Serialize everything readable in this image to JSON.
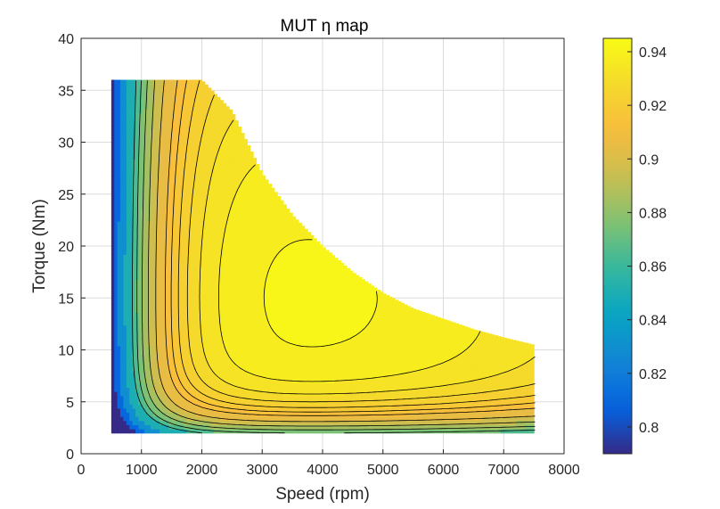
{
  "chart_data": {
    "type": "heatmap",
    "subtype": "filled-contour",
    "title": "MUT η map",
    "xlabel": "Speed (rpm)",
    "ylabel": "Torque  (Nm)",
    "xlim": [
      0,
      8000
    ],
    "ylim": [
      0,
      40
    ],
    "xticks": [
      0,
      1000,
      2000,
      3000,
      4000,
      5000,
      6000,
      7000,
      8000
    ],
    "yticks": [
      0,
      5,
      10,
      15,
      20,
      25,
      30,
      35,
      40
    ],
    "grid": true,
    "colormap": "parula",
    "colorbar": {
      "range": [
        0.79,
        0.945
      ],
      "ticks": [
        0.8,
        0.82,
        0.84,
        0.86,
        0.88,
        0.9,
        0.92,
        0.94
      ],
      "tick_labels": [
        "0.8",
        "0.82",
        "0.84",
        "0.86",
        "0.88",
        "0.9",
        "0.92",
        "0.94"
      ],
      "placement": "right"
    },
    "torque_envelope": {
      "speed": [
        500,
        1500,
        2000,
        2500,
        3000,
        3500,
        4000,
        4500,
        5000,
        5500,
        6000,
        6500,
        7000,
        7500
      ],
      "max_torque": [
        36,
        36,
        36,
        33,
        27,
        23,
        20,
        17.5,
        15.5,
        14,
        13,
        12,
        11.2,
        10.5
      ],
      "min_torque": 2
    },
    "contour_levels": [
      0.8,
      0.82,
      0.84,
      0.86,
      0.87,
      0.88,
      0.89,
      0.9,
      0.91,
      0.915,
      0.92,
      0.925,
      0.93,
      0.935,
      0.94
    ],
    "efficiency_peak": {
      "speed": 3000,
      "torque": 14,
      "efficiency": 0.942
    }
  }
}
